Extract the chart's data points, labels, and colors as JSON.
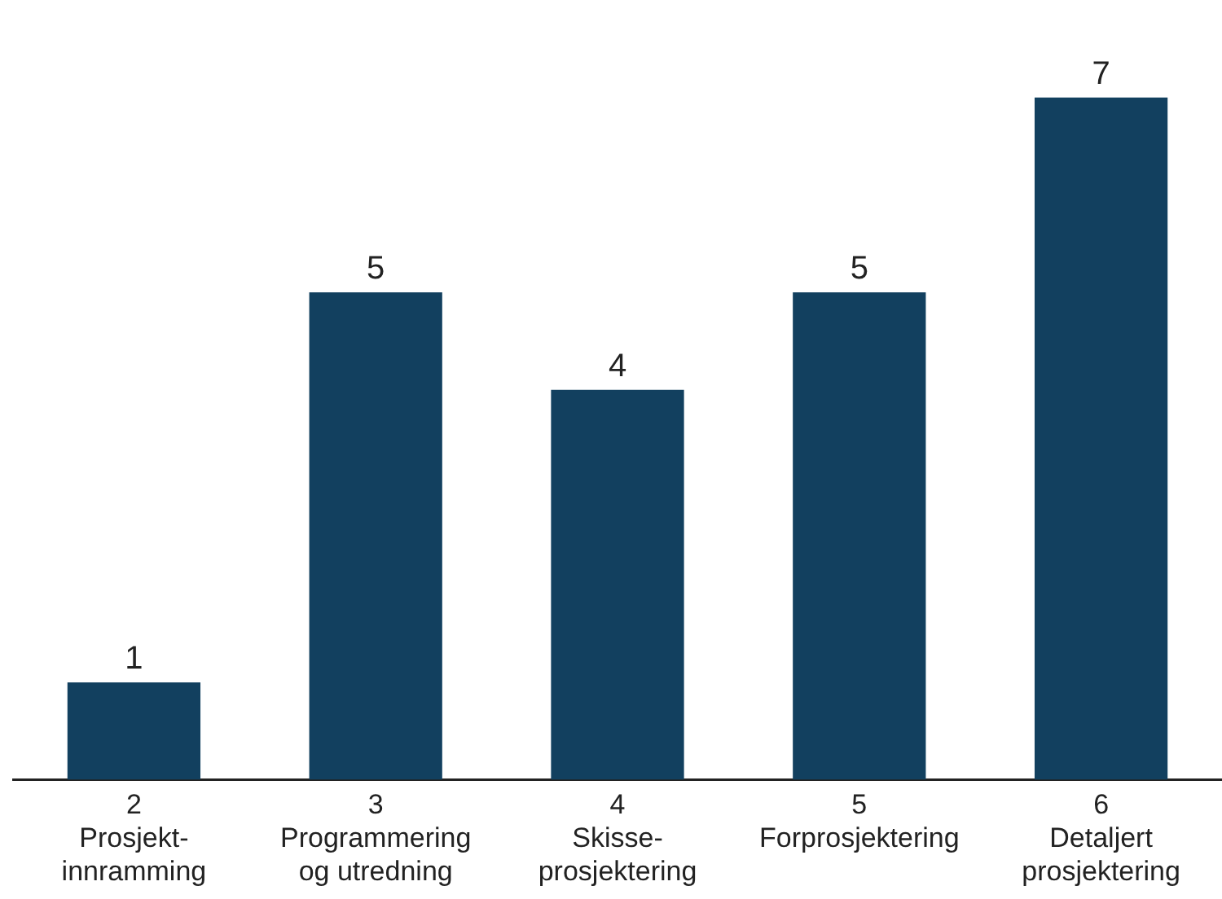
{
  "chart_data": {
    "type": "bar",
    "categories": [
      "2\nProsjekt-\ninnramming",
      "3\nProgrammering\nog utredning",
      "4\nSkisse-\nprosjektering",
      "5\nForprosjektering",
      "6\nDetaljert\nprosjektering"
    ],
    "values": [
      1,
      5,
      4,
      5,
      7
    ],
    "color": "#12405f",
    "data_labels": true,
    "grid": false,
    "legend": false
  }
}
